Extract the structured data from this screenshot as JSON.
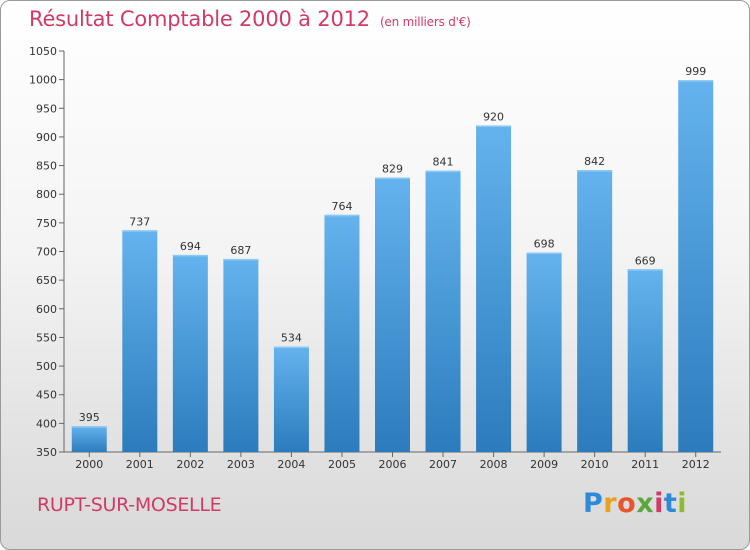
{
  "header": {
    "title": "Résultat Comptable 2000 à 2012",
    "unit": "(en milliers d'€)"
  },
  "commune": "RUPT-SUR-MOSELLE",
  "logo": {
    "letters": [
      "P",
      "r",
      "o",
      "x",
      "i",
      "t",
      "i"
    ],
    "colors": [
      "#2e8ad8",
      "#e8a21c",
      "#e8552a",
      "#5aa83a",
      "#d23a66",
      "#2e8ad8",
      "#8dbd2c"
    ]
  },
  "chart_data": {
    "type": "bar",
    "categories": [
      "2000",
      "2001",
      "2002",
      "2003",
      "2004",
      "2005",
      "2006",
      "2007",
      "2008",
      "2009",
      "2010",
      "2011",
      "2012"
    ],
    "values": [
      395,
      737,
      694,
      687,
      534,
      764,
      829,
      841,
      920,
      698,
      842,
      669,
      999
    ],
    "title": "Résultat Comptable 2000 à 2012",
    "xlabel": "",
    "ylabel": "",
    "ylim": [
      350,
      1050
    ],
    "yticks": [
      350,
      400,
      450,
      500,
      550,
      600,
      650,
      700,
      750,
      800,
      850,
      900,
      950,
      1000,
      1050
    ],
    "grid": false,
    "colors": {
      "bar": "#4a9fe0",
      "bar_light": "#62b2ee",
      "bar_dark": "#2f7fc0",
      "axis": "#555555"
    }
  }
}
